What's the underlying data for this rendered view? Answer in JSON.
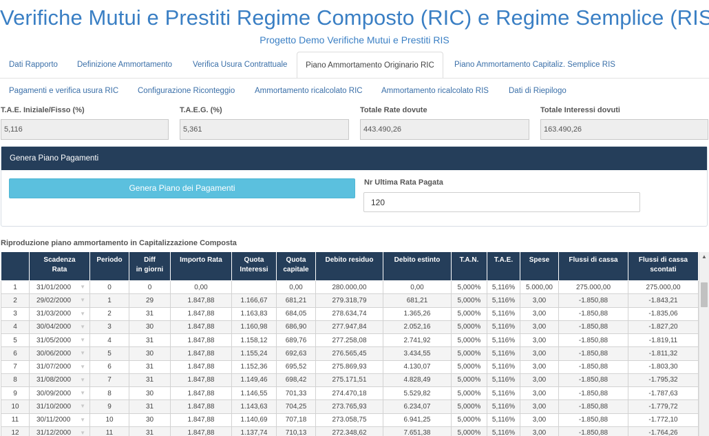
{
  "header": {
    "title": "Verifiche Mutui e Prestiti Regime Composto (RIC) e Regime Semplice (RIS)",
    "subtitle": "Progetto Demo Verifiche Mutui e Prestiti RIS"
  },
  "tabs_row1": [
    {
      "label": "Dati Rapporto"
    },
    {
      "label": "Definizione Ammortamento"
    },
    {
      "label": "Verifica Usura Contrattuale"
    },
    {
      "label": "Piano Ammortamento Originario RIC"
    },
    {
      "label": "Piano Ammortamento Capitaliz. Semplice RIS"
    }
  ],
  "tabs_row2": [
    {
      "label": "Pagamenti e verifica usura RIC"
    },
    {
      "label": "Configurazione Riconteggio"
    },
    {
      "label": "Ammortamento ricalcolato RIC"
    },
    {
      "label": "Ammortamento ricalcolato RIS"
    },
    {
      "label": "Dati di Riepilogo"
    }
  ],
  "active_tab": "Piano Ammortamento Originario RIC",
  "kpis": [
    {
      "label": "T.A.E. Iniziale/Fisso (%)",
      "value": "5,116"
    },
    {
      "label": "T.A.E.G. (%)",
      "value": "5,361"
    },
    {
      "label": "Totale Rate dovute",
      "value": "443.490,26"
    },
    {
      "label": "Totale Interessi dovuti",
      "value": "163.490,26"
    }
  ],
  "panel": {
    "title": "Genera Piano Pagamenti",
    "button_label": "Genera Piano dei Pagamenti",
    "nr_label": "Nr Ultima Rata Pagata",
    "nr_value": "120"
  },
  "section_title": "Riproduzione piano ammortamento in Capitalizzazione Composta",
  "table": {
    "columns": [
      {
        "label": "",
        "sub": ""
      },
      {
        "label": "Scadenza",
        "sub": "Rata"
      },
      {
        "label": "Periodo",
        "sub": ""
      },
      {
        "label": "Diff",
        "sub": "in giorni"
      },
      {
        "label": "Importo Rata",
        "sub": ""
      },
      {
        "label": "Quota",
        "sub": "Interessi"
      },
      {
        "label": "Quota",
        "sub": "capitale"
      },
      {
        "label": "Debito residuo",
        "sub": ""
      },
      {
        "label": "Debito estinto",
        "sub": ""
      },
      {
        "label": "T.A.N.",
        "sub": ""
      },
      {
        "label": "T.A.E.",
        "sub": ""
      },
      {
        "label": "Spese",
        "sub": ""
      },
      {
        "label": "Flussi di cassa",
        "sub": ""
      },
      {
        "label": "Flussi di cassa",
        "sub": "scontati"
      }
    ],
    "rows": [
      [
        "1",
        "31/01/2000",
        "0",
        "0",
        "0,00",
        "",
        "0,00",
        "280.000,00",
        "0,00",
        "5,000%",
        "5,116%",
        "5.000,00",
        "275.000,00",
        "275.000,00"
      ],
      [
        "2",
        "29/02/2000",
        "1",
        "29",
        "1.847,88",
        "1.166,67",
        "681,21",
        "279.318,79",
        "681,21",
        "5,000%",
        "5,116%",
        "3,00",
        "-1.850,88",
        "-1.843,21"
      ],
      [
        "3",
        "31/03/2000",
        "2",
        "31",
        "1.847,88",
        "1.163,83",
        "684,05",
        "278.634,74",
        "1.365,26",
        "5,000%",
        "5,116%",
        "3,00",
        "-1.850,88",
        "-1.835,06"
      ],
      [
        "4",
        "30/04/2000",
        "3",
        "30",
        "1.847,88",
        "1.160,98",
        "686,90",
        "277.947,84",
        "2.052,16",
        "5,000%",
        "5,116%",
        "3,00",
        "-1.850,88",
        "-1.827,20"
      ],
      [
        "5",
        "31/05/2000",
        "4",
        "31",
        "1.847,88",
        "1.158,12",
        "689,76",
        "277.258,08",
        "2.741,92",
        "5,000%",
        "5,116%",
        "3,00",
        "-1.850,88",
        "-1.819,11"
      ],
      [
        "6",
        "30/06/2000",
        "5",
        "30",
        "1.847,88",
        "1.155,24",
        "692,63",
        "276.565,45",
        "3.434,55",
        "5,000%",
        "5,116%",
        "3,00",
        "-1.850,88",
        "-1.811,32"
      ],
      [
        "7",
        "31/07/2000",
        "6",
        "31",
        "1.847,88",
        "1.152,36",
        "695,52",
        "275.869,93",
        "4.130,07",
        "5,000%",
        "5,116%",
        "3,00",
        "-1.850,88",
        "-1.803,30"
      ],
      [
        "8",
        "31/08/2000",
        "7",
        "31",
        "1.847,88",
        "1.149,46",
        "698,42",
        "275.171,51",
        "4.828,49",
        "5,000%",
        "5,116%",
        "3,00",
        "-1.850,88",
        "-1.795,32"
      ],
      [
        "9",
        "30/09/2000",
        "8",
        "30",
        "1.847,88",
        "1.146,55",
        "701,33",
        "274.470,18",
        "5.529,82",
        "5,000%",
        "5,116%",
        "3,00",
        "-1.850,88",
        "-1.787,63"
      ],
      [
        "10",
        "31/10/2000",
        "9",
        "31",
        "1.847,88",
        "1.143,63",
        "704,25",
        "273.765,93",
        "6.234,07",
        "5,000%",
        "5,116%",
        "3,00",
        "-1.850,88",
        "-1.779,72"
      ],
      [
        "11",
        "30/11/2000",
        "10",
        "30",
        "1.847,88",
        "1.140,69",
        "707,18",
        "273.058,75",
        "6.941,25",
        "5,000%",
        "5,116%",
        "3,00",
        "-1.850,88",
        "-1.772,10"
      ],
      [
        "12",
        "31/12/2000",
        "11",
        "31",
        "1.847,88",
        "1.137,74",
        "710,13",
        "272.348,62",
        "7.651,38",
        "5,000%",
        "5,116%",
        "3,00",
        "-1.850,88",
        "-1.764,26"
      ]
    ]
  },
  "icons": {
    "dropdown": "chevron-down-icon",
    "scroll_up": "scroll-up-arrow-icon"
  }
}
